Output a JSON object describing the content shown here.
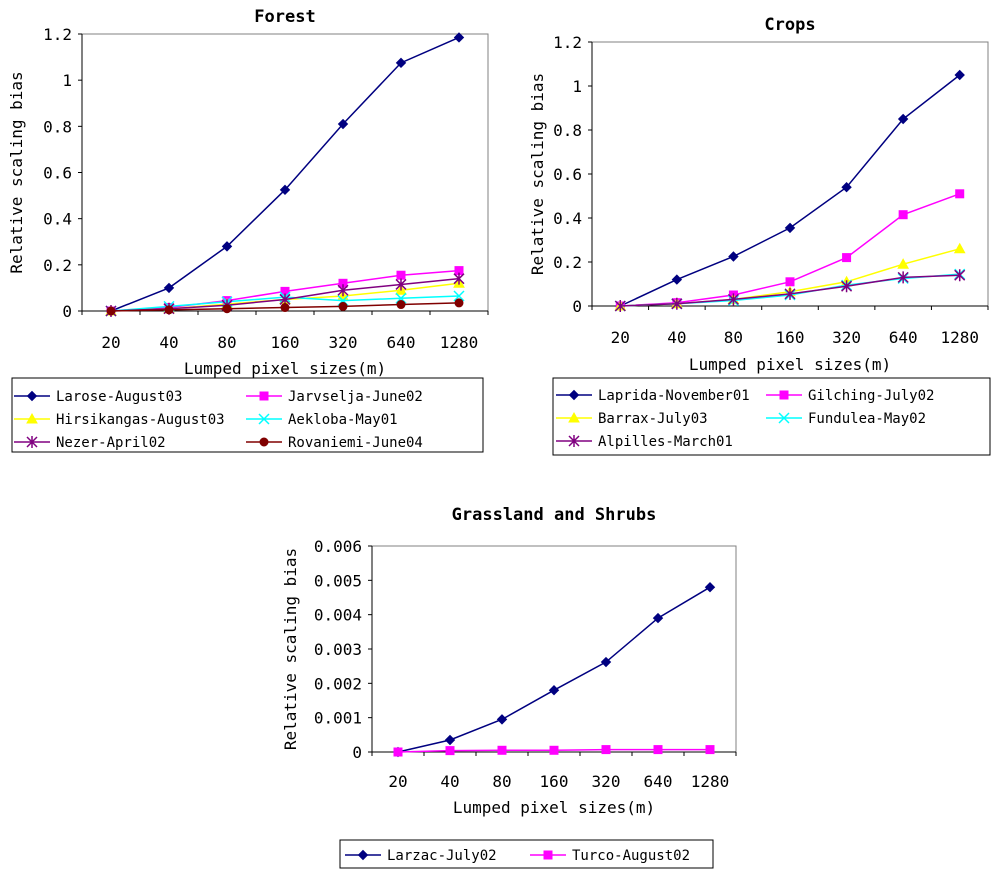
{
  "chart_data": [
    {
      "type": "line",
      "title": "Forest",
      "xlabel": "Lumped pixel sizes(m)",
      "ylabel": "Relative scaling bias",
      "categories": [
        "20",
        "40",
        "80",
        "160",
        "320",
        "640",
        "1280"
      ],
      "ylim": [
        0,
        1.2
      ],
      "yticks": [
        "0",
        "0.2",
        "0.4",
        "0.6",
        "0.8",
        "1",
        "1.2"
      ],
      "series": [
        {
          "name": "Larose-August03",
          "color": "#000080",
          "marker": "diamond",
          "values": [
            0,
            0.1,
            0.28,
            0.525,
            0.81,
            1.075,
            1.185
          ]
        },
        {
          "name": "Jarvselja-June02",
          "color": "#ff00ff",
          "marker": "square",
          "values": [
            0,
            0.015,
            0.045,
            0.085,
            0.12,
            0.155,
            0.175
          ]
        },
        {
          "name": "Hirsikangas-August03",
          "color": "#ffff00",
          "marker": "triangle",
          "values": [
            0,
            0.01,
            0.03,
            0.05,
            0.065,
            0.09,
            0.12
          ]
        },
        {
          "name": "Aekloba-May01",
          "color": "#00ffff",
          "marker": "x",
          "values": [
            0,
            0.02,
            0.04,
            0.06,
            0.045,
            0.055,
            0.065
          ]
        },
        {
          "name": "Nezer-April02",
          "color": "#800080",
          "marker": "star",
          "values": [
            0,
            0.01,
            0.025,
            0.05,
            0.09,
            0.115,
            0.14
          ]
        },
        {
          "name": "Rovaniemi-June04",
          "color": "#800000",
          "marker": "circle",
          "values": [
            0,
            0.005,
            0.01,
            0.015,
            0.02,
            0.028,
            0.035
          ]
        }
      ]
    },
    {
      "type": "line",
      "title": "Crops",
      "xlabel": "Lumped pixel sizes(m)",
      "ylabel": "Relative scaling bias",
      "categories": [
        "20",
        "40",
        "80",
        "160",
        "320",
        "640",
        "1280"
      ],
      "ylim": [
        0,
        1.2
      ],
      "yticks": [
        "0",
        "0.2",
        "0.4",
        "0.6",
        "0.8",
        "1",
        "1.2"
      ],
      "series": [
        {
          "name": "Laprida-November01",
          "color": "#000080",
          "marker": "diamond",
          "values": [
            0,
            0.12,
            0.225,
            0.355,
            0.54,
            0.85,
            1.05
          ]
        },
        {
          "name": "Gilching-July02",
          "color": "#ff00ff",
          "marker": "square",
          "values": [
            0,
            0.015,
            0.05,
            0.11,
            0.22,
            0.415,
            0.51
          ]
        },
        {
          "name": "Barrax-July03",
          "color": "#ffff00",
          "marker": "triangle",
          "values": [
            0,
            0.01,
            0.03,
            0.065,
            0.11,
            0.19,
            0.26
          ]
        },
        {
          "name": "Fundulea-May02",
          "color": "#00ffff",
          "marker": "x",
          "values": [
            0,
            0.01,
            0.025,
            0.05,
            0.095,
            0.125,
            0.145
          ]
        },
        {
          "name": "Alpilles-March01",
          "color": "#800080",
          "marker": "star",
          "values": [
            0,
            0.01,
            0.03,
            0.055,
            0.09,
            0.13,
            0.14
          ]
        }
      ]
    },
    {
      "type": "line",
      "title": "Grassland and Shrubs",
      "xlabel": "Lumped pixel sizes(m)",
      "ylabel": "Relative scaling bias",
      "categories": [
        "20",
        "40",
        "80",
        "160",
        "320",
        "640",
        "1280"
      ],
      "ylim": [
        0,
        0.006
      ],
      "yticks": [
        "0",
        "0.001",
        "0.002",
        "0.003",
        "0.004",
        "0.005",
        "0.006"
      ],
      "series": [
        {
          "name": "Larzac-July02",
          "color": "#000080",
          "marker": "diamond",
          "values": [
            0,
            0.00035,
            0.00095,
            0.0018,
            0.00262,
            0.0039,
            0.0048
          ]
        },
        {
          "name": "Turco-August02",
          "color": "#ff00ff",
          "marker": "square",
          "values": [
            0,
            4e-05,
            5e-05,
            5e-05,
            7e-05,
            7e-05,
            7e-05
          ]
        }
      ]
    }
  ]
}
